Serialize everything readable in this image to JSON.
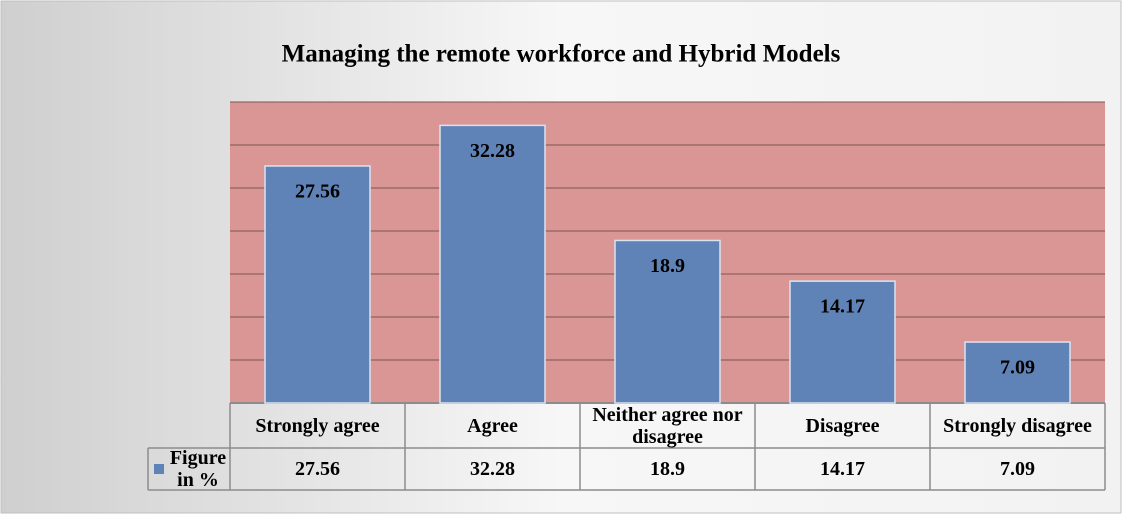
{
  "chart_data": {
    "type": "bar",
    "title": "Managing the remote workforce and Hybrid Models",
    "categories": [
      "Strongly agree",
      "Agree",
      "Neither agree nor disagree",
      "Disagree",
      "Strongly disagree"
    ],
    "series": [
      {
        "name": "Figure in %",
        "color": "#6083b7",
        "values": [
          27.56,
          32.28,
          18.9,
          14.17,
          7.09
        ]
      }
    ],
    "ylim": [
      0,
      35
    ],
    "yticks": [
      0,
      5,
      10,
      15,
      20,
      25,
      30,
      35
    ],
    "grid": true
  }
}
